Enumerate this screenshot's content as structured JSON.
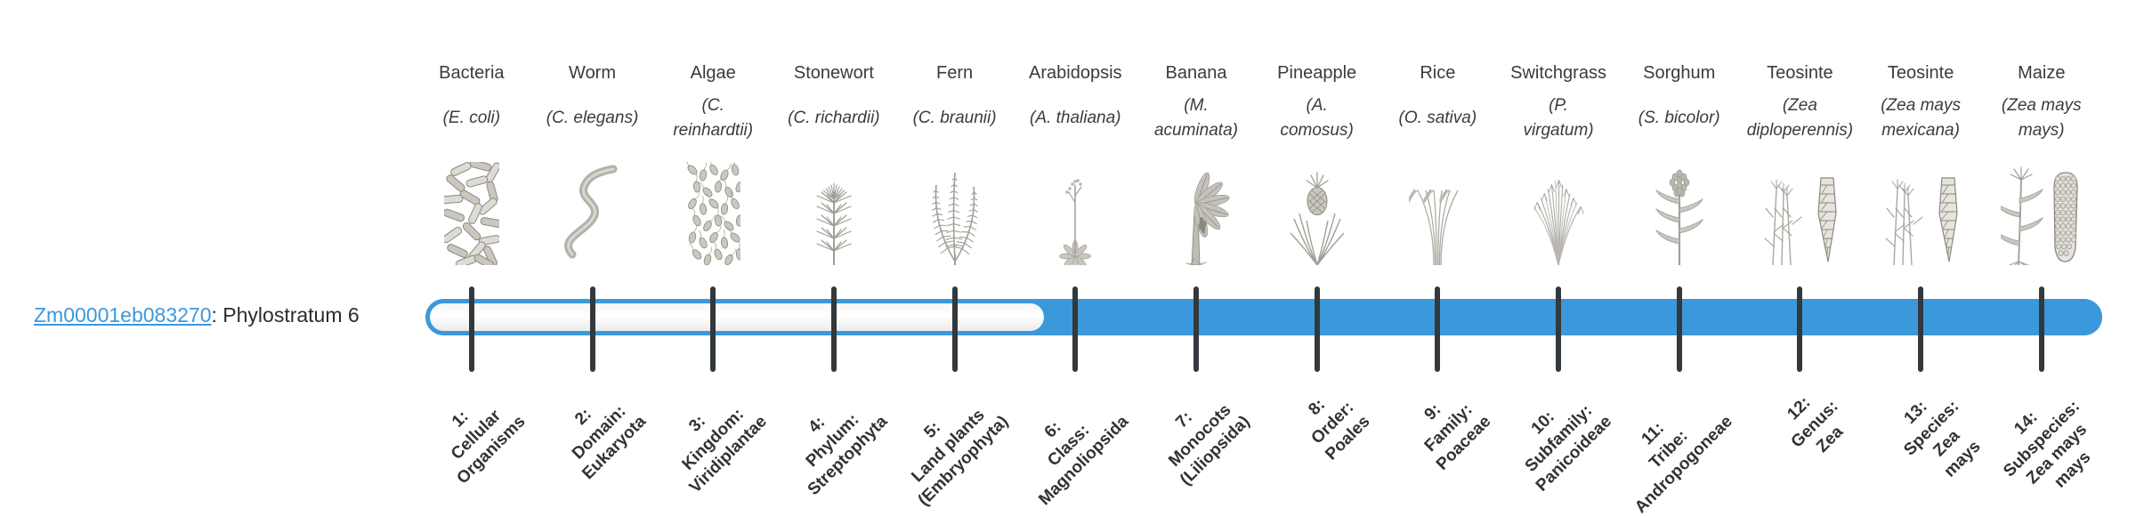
{
  "page": {
    "background": "#ffffff"
  },
  "gene": {
    "id": "Zm00001eb083270",
    "suffix": ": Phylostratum 6"
  },
  "colors": {
    "accent_blue": "#3B99DB",
    "tick_dark": "#33383C",
    "text_dark": "#3A3A3A"
  },
  "timeline": {
    "total_strata": 14,
    "filled_from_stratum": 6,
    "filled_range_label": "6–14"
  },
  "phylostrata": [
    {
      "stratum": 1,
      "common_name": "Bacteria",
      "scientific_name": "(E. coli)",
      "icon": "bacteria-icon",
      "stratum_label": "1:\nCellular\nOrganisms",
      "filled": false
    },
    {
      "stratum": 2,
      "common_name": "Worm",
      "scientific_name": "(C. elegans)",
      "icon": "worm-icon",
      "stratum_label": "2:\nDomain:\nEukaryota",
      "filled": false
    },
    {
      "stratum": 3,
      "common_name": "Algae",
      "scientific_name": "(C.\nreinhardtii)",
      "icon": "algae-icon",
      "stratum_label": "3:\nKingdom:\nViridiplantae",
      "filled": false
    },
    {
      "stratum": 4,
      "common_name": "Stonewort",
      "scientific_name": "(C. richardii)",
      "icon": "stonewort-icon",
      "stratum_label": "4:\nPhylum:\nStreptophyta",
      "filled": false
    },
    {
      "stratum": 5,
      "common_name": "Fern",
      "scientific_name": "(C. braunii)",
      "icon": "fern-icon",
      "stratum_label": "5:\nLand plants\n(Embryophyta)",
      "filled": false
    },
    {
      "stratum": 6,
      "common_name": "Arabidopsis",
      "scientific_name": "(A. thaliana)",
      "icon": "arabidopsis-icon",
      "stratum_label": "6:\nClass:\nMagnoliopsida",
      "filled": true
    },
    {
      "stratum": 7,
      "common_name": "Banana",
      "scientific_name": "(M.\nacuminata)",
      "icon": "banana-icon",
      "stratum_label": "7:\nMonocots\n(Liliopsida)",
      "filled": true
    },
    {
      "stratum": 8,
      "common_name": "Pineapple",
      "scientific_name": "(A.\ncomosus)",
      "icon": "pineapple-icon",
      "stratum_label": "8:\nOrder:\nPoales",
      "filled": true
    },
    {
      "stratum": 9,
      "common_name": "Rice",
      "scientific_name": "(O. sativa)",
      "icon": "rice-icon",
      "stratum_label": "9:\nFamily:\nPoaceae",
      "filled": true
    },
    {
      "stratum": 10,
      "common_name": "Switchgrass",
      "scientific_name": "(P.\nvirgatum)",
      "icon": "switchgrass-icon",
      "stratum_label": "10:\nSubfamily:\nPanicoideae",
      "filled": true
    },
    {
      "stratum": 11,
      "common_name": "Sorghum",
      "scientific_name": "(S. bicolor)",
      "icon": "sorghum-icon",
      "stratum_label": "11:\nTribe:\nAndropogoneae",
      "filled": true
    },
    {
      "stratum": 12,
      "common_name": "Teosinte",
      "scientific_name": "(Zea\ndiploperennis)",
      "icon": "teosinte-icon",
      "stratum_label": "12:\nGenus:\nZea",
      "filled": true
    },
    {
      "stratum": 13,
      "common_name": "Teosinte",
      "scientific_name": "(Zea mays\nmexicana)",
      "icon": "teosinte-icon",
      "stratum_label": "13:\nSpecies:\nZea\nmays",
      "filled": true
    },
    {
      "stratum": 14,
      "common_name": "Maize",
      "scientific_name": "(Zea mays\nmays)",
      "icon": "maize-icon",
      "stratum_label": "14:\nSubspecies:\nZea mays\nmays",
      "filled": true
    }
  ]
}
